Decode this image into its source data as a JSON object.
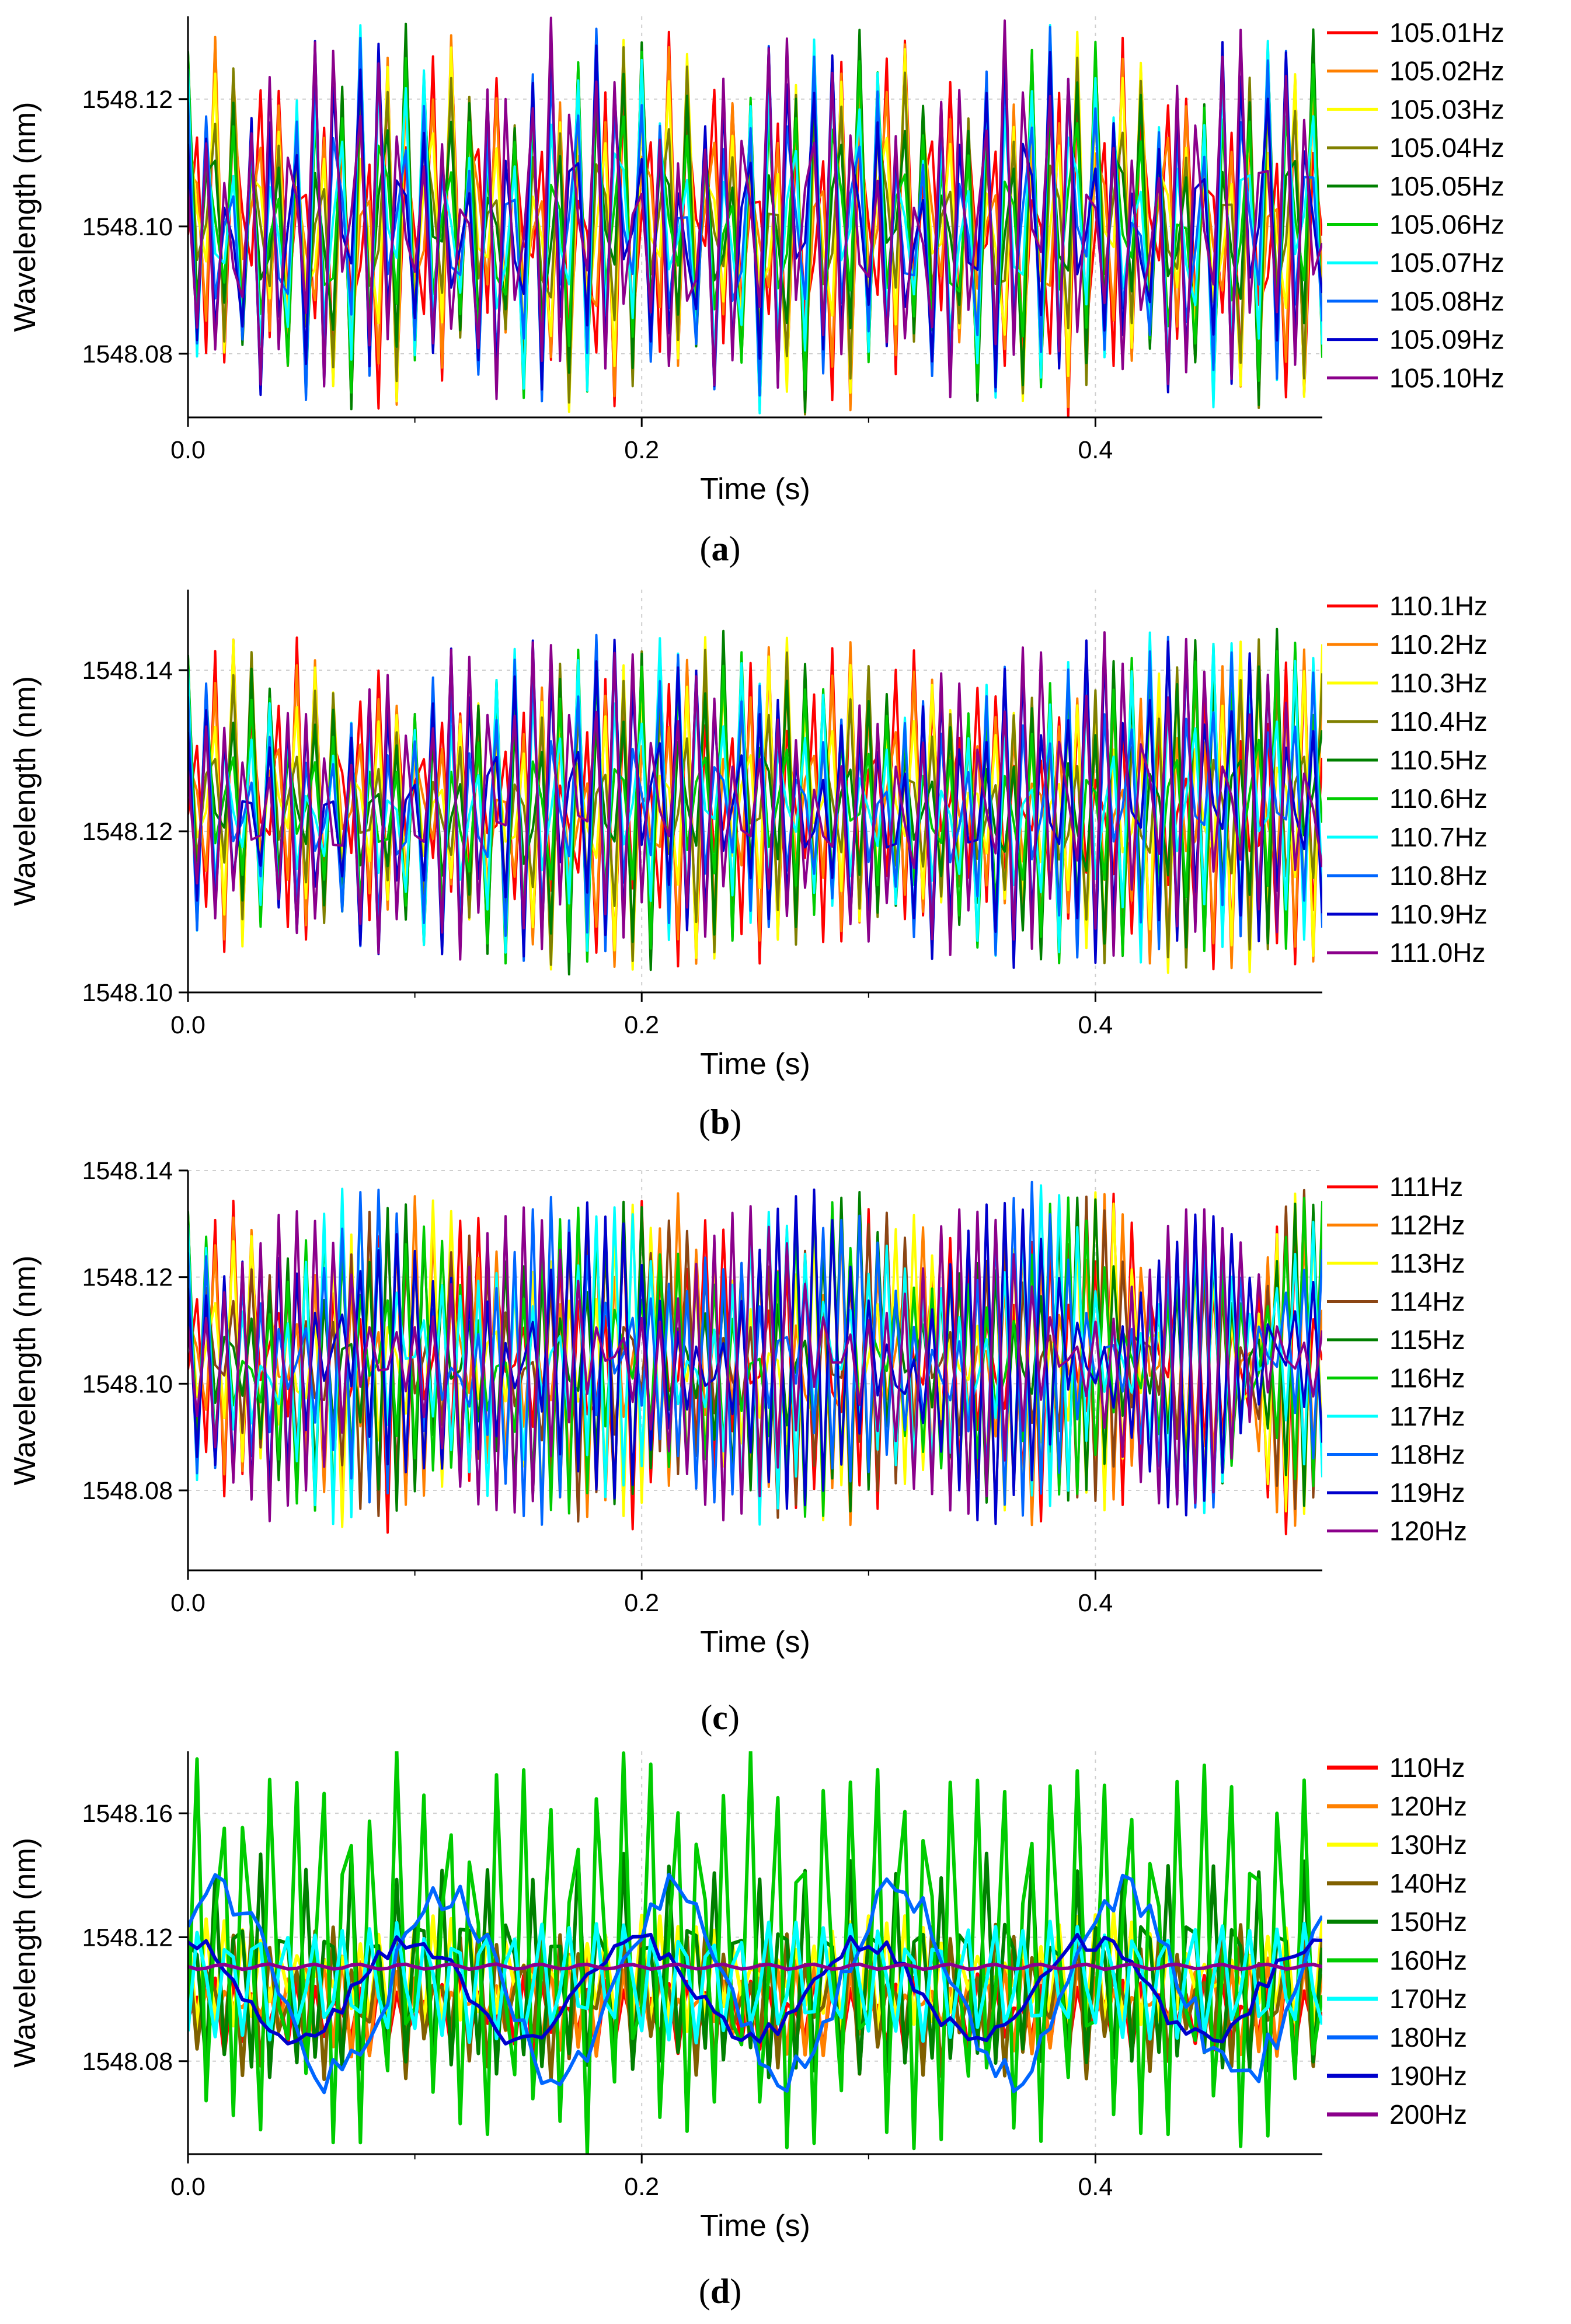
{
  "figure": {
    "caption_style": "(letter)"
  },
  "chart_data": [
    {
      "panel": "a",
      "type": "line",
      "title": "",
      "xlabel": "Time (s)",
      "ylabel": "Wavelength (nm)",
      "xlim": [
        0,
        0.5
      ],
      "ylim": [
        1548.07,
        1548.133
      ],
      "xticks": [
        "0.0",
        "0.2",
        "0.4"
      ],
      "xtick_values": [
        0,
        0.2,
        0.4
      ],
      "yticks": [
        "1548.08",
        "1548.10",
        "1548.12"
      ],
      "ytick_values": [
        1548.08,
        1548.1,
        1548.12
      ],
      "grid": true,
      "legend_position": "right",
      "signal": {
        "base_freq": 105.0,
        "df": 0.01,
        "center": 1548.1,
        "amp": 0.028,
        "sample_rate": 250,
        "beat_period": 0.1,
        "low_freq_amp": 0.004
      },
      "series": [
        {
          "name": "105.01Hz",
          "color": "#ff0000"
        },
        {
          "name": "105.02Hz",
          "color": "#ff8000"
        },
        {
          "name": "105.03Hz",
          "color": "#ffff00"
        },
        {
          "name": "105.04Hz",
          "color": "#808000"
        },
        {
          "name": "105.05Hz",
          "color": "#008000"
        },
        {
          "name": "105.06Hz",
          "color": "#00cc00"
        },
        {
          "name": "105.07Hz",
          "color": "#00ffff"
        },
        {
          "name": "105.08Hz",
          "color": "#0066ff"
        },
        {
          "name": "105.09Hz",
          "color": "#0000cc"
        },
        {
          "name": "105.10Hz",
          "color": "#8b008b"
        }
      ]
    },
    {
      "panel": "b",
      "type": "line",
      "title": "",
      "xlabel": "Time (s)",
      "ylabel": "Wavelength (nm)",
      "xlim": [
        0,
        0.5
      ],
      "ylim": [
        1548.1,
        1548.15
      ],
      "xticks": [
        "0.0",
        "0.2",
        "0.4"
      ],
      "xtick_values": [
        0,
        0.2,
        0.4
      ],
      "yticks": [
        "1548.10",
        "1548.12",
        "1548.14"
      ],
      "ytick_values": [
        1548.1,
        1548.12,
        1548.14
      ],
      "grid": true,
      "legend_position": "right",
      "signal": {
        "base_freq": 110.0,
        "df": 0.1,
        "center": 1548.123,
        "amp": 0.02,
        "sample_rate": 250,
        "beat_period": 0.25,
        "low_freq_amp": 0.002
      },
      "series": [
        {
          "name": "110.1Hz",
          "color": "#ff0000"
        },
        {
          "name": "110.2Hz",
          "color": "#ff8000"
        },
        {
          "name": "110.3Hz",
          "color": "#ffff00"
        },
        {
          "name": "110.4Hz",
          "color": "#808000"
        },
        {
          "name": "110.5Hz",
          "color": "#008000"
        },
        {
          "name": "110.6Hz",
          "color": "#00cc00"
        },
        {
          "name": "110.7Hz",
          "color": "#00ffff"
        },
        {
          "name": "110.8Hz",
          "color": "#0066ff"
        },
        {
          "name": "110.9Hz",
          "color": "#0000cc"
        },
        {
          "name": "111.0Hz",
          "color": "#8b008b"
        }
      ]
    },
    {
      "panel": "c",
      "type": "line",
      "title": "",
      "xlabel": "Time (s)",
      "ylabel": "Wavelength (nm)",
      "xlim": [
        0,
        0.5
      ],
      "ylim": [
        1548.065,
        1548.14
      ],
      "xticks": [
        "0.0",
        "0.2",
        "0.4"
      ],
      "xtick_values": [
        0,
        0.2,
        0.4
      ],
      "yticks": [
        "1548.08",
        "1548.10",
        "1548.12",
        "1548.14"
      ],
      "ytick_values": [
        1548.08,
        1548.1,
        1548.12,
        1548.14
      ],
      "grid": true,
      "legend_position": "right",
      "signal": {
        "base_freq": 110.0,
        "df": 1.0,
        "center": 1548.104,
        "amp": 0.03,
        "sample_rate": 250,
        "beat_period": 0.1,
        "low_freq_amp": 0.003
      },
      "series": [
        {
          "name": "111Hz",
          "color": "#ff0000"
        },
        {
          "name": "112Hz",
          "color": "#ff8000"
        },
        {
          "name": "113Hz",
          "color": "#ffff00"
        },
        {
          "name": "114Hz",
          "color": "#8b4513"
        },
        {
          "name": "115Hz",
          "color": "#008000"
        },
        {
          "name": "116Hz",
          "color": "#00cc00"
        },
        {
          "name": "117Hz",
          "color": "#00ffff"
        },
        {
          "name": "118Hz",
          "color": "#0066ff"
        },
        {
          "name": "119Hz",
          "color": "#0000cc"
        },
        {
          "name": "120Hz",
          "color": "#8b008b"
        }
      ]
    },
    {
      "panel": "d",
      "type": "line",
      "title": "",
      "xlabel": "Time (s)",
      "ylabel": "Wavelength (nm)",
      "xlim": [
        0,
        0.5
      ],
      "ylim": [
        1548.05,
        1548.18
      ],
      "xticks": [
        "0.0",
        "0.2",
        "0.4"
      ],
      "xtick_values": [
        0,
        0.2,
        0.4
      ],
      "yticks": [
        "1548.08",
        "1548.12",
        "1548.16"
      ],
      "ytick_values": [
        1548.08,
        1548.12,
        1548.16
      ],
      "grid": true,
      "legend_position": "right",
      "signal": {
        "base_freq": 100.0,
        "df": 10.0,
        "center": 1548.104,
        "sample_rate": 250,
        "amps": [
          0.012,
          0.015,
          0.018,
          0.024,
          0.035,
          0.06,
          0.018,
          0.03,
          0.016,
          0.0008
        ],
        "centers": [
          1548.095,
          1548.098,
          1548.108,
          1548.1,
          1548.108,
          1548.115,
          1548.106,
          1548.105,
          1548.103,
          1548.1105
        ],
        "lowpass": [
          false,
          false,
          false,
          false,
          false,
          false,
          false,
          true,
          true,
          false
        ]
      },
      "series": [
        {
          "name": "110Hz",
          "color": "#ff0000"
        },
        {
          "name": "120Hz",
          "color": "#ff8000"
        },
        {
          "name": "130Hz",
          "color": "#ffff00"
        },
        {
          "name": "140Hz",
          "color": "#806000"
        },
        {
          "name": "150Hz",
          "color": "#008000"
        },
        {
          "name": "160Hz",
          "color": "#00cc00"
        },
        {
          "name": "170Hz",
          "color": "#00ffff"
        },
        {
          "name": "180Hz",
          "color": "#0066ff"
        },
        {
          "name": "190Hz",
          "color": "#0000cc"
        },
        {
          "name": "200Hz",
          "color": "#8b008b"
        }
      ]
    }
  ]
}
